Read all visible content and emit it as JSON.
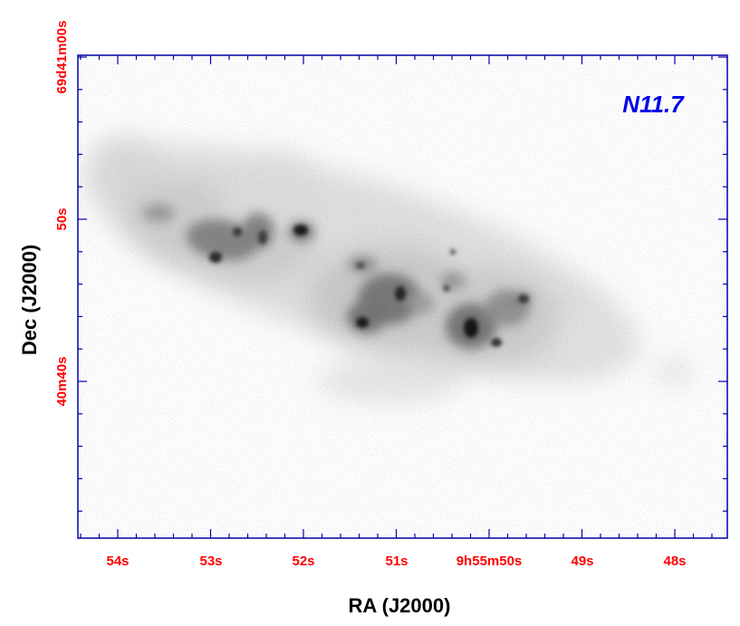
{
  "figure": {
    "panel_label": "N11.7",
    "x_axis_title": "RA (J2000)",
    "y_axis_title": "Dec (J2000)",
    "x_tick_labels": [
      "54s",
      "53s",
      "52s",
      "51s",
      "9h55m50s",
      "49s",
      "48s"
    ],
    "y_tick_labels": [
      "69d41m00s",
      "50s",
      "40m40s"
    ]
  },
  "colors": {
    "frame": "#0000aa",
    "tick_label": "#ff0000",
    "panel_label": "#0000ee",
    "axis_title": "#000000"
  }
}
